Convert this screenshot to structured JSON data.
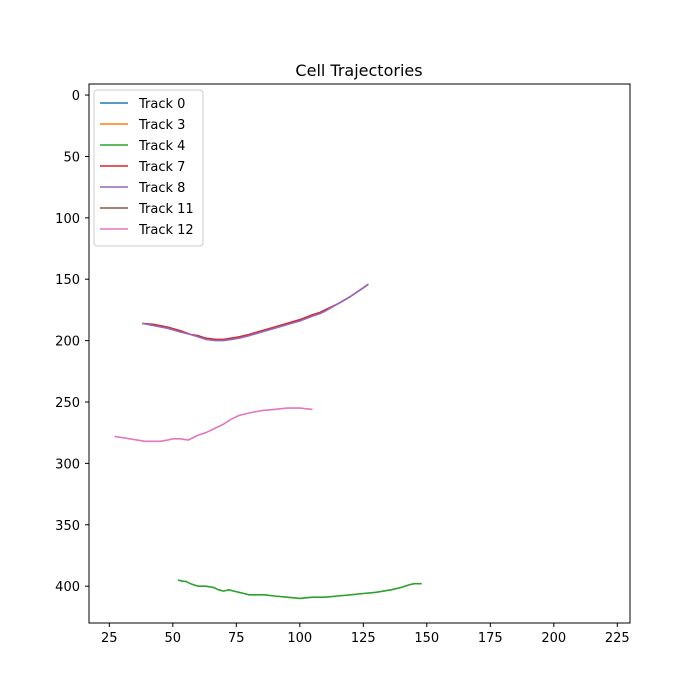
{
  "chart_data": {
    "type": "line",
    "title": "Cell Trajectories",
    "xlabel": "",
    "ylabel": "",
    "xlim": [
      17,
      230
    ],
    "ylim": [
      430,
      -9
    ],
    "y_inverted": true,
    "grid": false,
    "legend_position": "top-left",
    "xticks": [
      25,
      50,
      75,
      100,
      125,
      150,
      175,
      200,
      225
    ],
    "yticks": [
      0,
      50,
      100,
      150,
      200,
      250,
      300,
      350,
      400
    ],
    "series": [
      {
        "name": "Track 0",
        "color": "#1f77b4",
        "x": [],
        "y": []
      },
      {
        "name": "Track 3",
        "color": "#ff7f0e",
        "x": [],
        "y": []
      },
      {
        "name": "Track 4",
        "color": "#2ca02c",
        "x": [
          52,
          54,
          55,
          57,
          60,
          63,
          66,
          68,
          70,
          72,
          74,
          76,
          78,
          80,
          83,
          86,
          90,
          95,
          100,
          105,
          110,
          115,
          120,
          125,
          130,
          133,
          136,
          140,
          143,
          145,
          148
        ],
        "y": [
          395,
          396,
          396,
          398,
          400,
          400,
          401,
          403,
          404,
          403,
          404,
          405,
          406,
          407,
          407,
          407,
          408,
          409,
          410,
          409,
          409,
          408,
          407,
          406,
          405,
          404,
          403,
          401,
          399,
          398,
          398
        ]
      },
      {
        "name": "Track 7",
        "color": "#d62728",
        "x": [
          38,
          43,
          48,
          53,
          57,
          60,
          63,
          67,
          70,
          73,
          76,
          80,
          85,
          90,
          95,
          100,
          105,
          108,
          110,
          115,
          120,
          125,
          127
        ],
        "y": [
          186,
          187,
          189,
          192,
          195,
          196,
          198,
          199,
          199,
          198,
          197,
          195,
          192,
          189,
          186,
          183,
          179,
          177,
          175,
          170,
          164,
          157,
          154
        ]
      },
      {
        "name": "Track 8",
        "color": "#9467bd",
        "x": [
          38,
          43,
          48,
          53,
          57,
          60,
          63,
          67,
          70,
          73,
          76,
          80,
          85,
          90,
          95,
          100,
          105,
          108,
          110,
          115,
          120,
          125,
          127
        ],
        "y": [
          186,
          188,
          190,
          193,
          195,
          197,
          199,
          200,
          200,
          199,
          198,
          196,
          193,
          190,
          187,
          184,
          180,
          178,
          176,
          170,
          164,
          157,
          154
        ]
      },
      {
        "name": "Track 11",
        "color": "#8c564b",
        "x": [],
        "y": []
      },
      {
        "name": "Track 12",
        "color": "#e377c2",
        "x": [
          27,
          30,
          33,
          36,
          39,
          42,
          45,
          48,
          50,
          53,
          56,
          58,
          60,
          63,
          66,
          70,
          73,
          76,
          80,
          85,
          90,
          95,
          100,
          105
        ],
        "y": [
          278,
          279,
          280,
          281,
          282,
          282,
          282,
          281,
          280,
          280,
          281,
          279,
          277,
          275,
          272,
          268,
          264,
          261,
          259,
          257,
          256,
          255,
          255,
          256
        ]
      }
    ]
  }
}
